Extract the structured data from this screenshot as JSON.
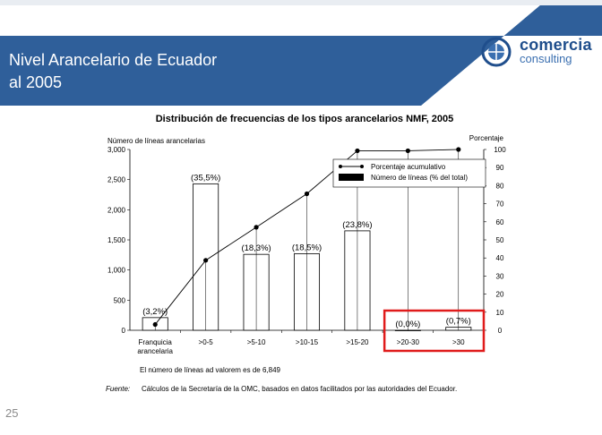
{
  "slide": {
    "title_line1": "Nivel Arancelario de Ecuador",
    "title_line2": "al 2005",
    "page_number": "25",
    "colors": {
      "header_blue": "#2f5f9a",
      "highlight_red": "#e01b1b"
    }
  },
  "logo": {
    "word": "comercia",
    "sub": "consulting"
  },
  "chart_data": {
    "type": "bar",
    "title": "Distribución de frecuencias de los tipos arancelarios NMF, 2005",
    "ylabel_left": "Número de líneas arancelarias",
    "ylabel_right": "Porcentaje",
    "categories": [
      [
        "Franquicia",
        "arancelaria"
      ],
      [
        ">0-5"
      ],
      [
        ">5-10"
      ],
      [
        ">10-15"
      ],
      [
        ">15-20"
      ],
      [
        ">20-30"
      ],
      [
        ">30"
      ]
    ],
    "bar_values": [
      210,
      2430,
      1260,
      1270,
      1650,
      0,
      50
    ],
    "bar_labels": [
      "(3,2%)",
      "(35,5%)",
      "(18,3%)",
      "(18,5%)",
      "(23,8%)",
      "(0,0%)",
      "(0,7%)"
    ],
    "cumulative_percent": [
      3.2,
      38.7,
      57.0,
      75.5,
      99.3,
      99.3,
      100.0
    ],
    "yleft": {
      "min": 0,
      "max": 3000,
      "ticks": [
        0,
        500,
        1000,
        1500,
        2000,
        2500,
        3000
      ],
      "tick_labels": [
        "0",
        "500",
        "1,000",
        "1,500",
        "2,000",
        "2,500",
        "3,000"
      ]
    },
    "yright": {
      "min": 0,
      "max": 100,
      "ticks": [
        0,
        10,
        20,
        30,
        40,
        50,
        60,
        70,
        80,
        90,
        100
      ],
      "tick_labels": [
        "0",
        "10",
        "20",
        "30",
        "40",
        "50",
        "60",
        "70",
        "80",
        "90",
        "100"
      ]
    },
    "legend": {
      "line": "Porcentaje acumulativo",
      "bar": "Número de líneas (% del total)",
      "placement": "top-right"
    },
    "highlighted_categories": [
      5,
      6
    ],
    "footnote": "El número de líneas ad valorem es de 6,849",
    "source_label": "Fuente:",
    "source_text": "Cálculos de la Secretaría de la OMC, basados en datos facilitados por las autoridades del Ecuador."
  }
}
